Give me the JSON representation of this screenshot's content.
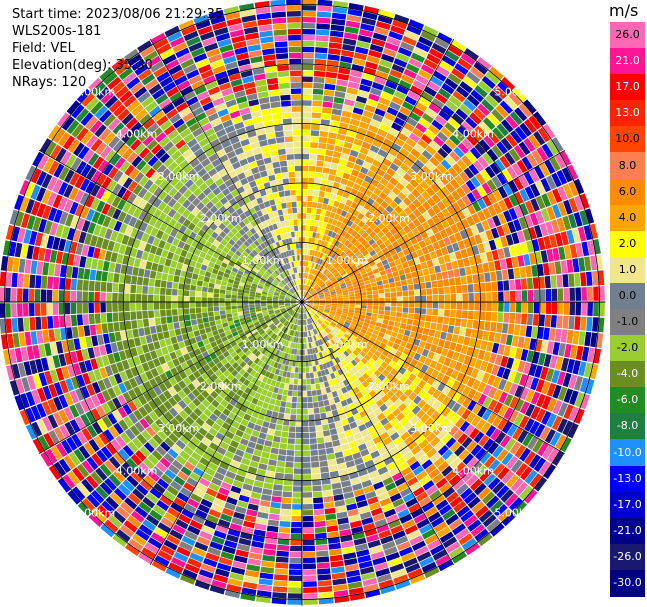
{
  "header": {
    "start_time": "Start time: 2023/08/06 21:29:35",
    "instrument": "WLS200s-181",
    "field": "Field: VEL",
    "elevation": "Elevation(deg): 35.30",
    "nrays": "NRays: 120"
  },
  "colorbar": {
    "unit": "m/s",
    "labels": [
      "26.0",
      "21.0",
      "17.0",
      "13.0",
      "10.0",
      "8.0",
      "6.0",
      "4.0",
      "2.0",
      "1.0",
      "0.0",
      "-1.0",
      "-2.0",
      "-4.0",
      "-6.0",
      "-8.0",
      "-10.0",
      "-13.0",
      "-17.0",
      "-21.0",
      "-26.0",
      "-30.0"
    ],
    "colors": [
      "#ff69b4",
      "#ff1493",
      "#ff0000",
      "#ff2400",
      "#ff4500",
      "#ff7f50",
      "#ff8c00",
      "#ffa500",
      "#ffff00",
      "#f0e68c",
      "#708090",
      "#808080",
      "#9acd32",
      "#6b8e23",
      "#228b22",
      "#1e7f3f",
      "#1e90ff",
      "#0000ff",
      "#0000cd",
      "#00008b",
      "#191970",
      "#000080"
    ]
  },
  "chart_data": {
    "type": "heatmap",
    "projection": "polar-ppi",
    "field": "VEL",
    "units": "m/s",
    "nrays": 120,
    "range_rings_km": [
      1.0,
      2.0,
      3.0,
      4.0,
      5.0
    ],
    "range_ring_labels": [
      "1.00km",
      "2.00km",
      "3.00km",
      "4.00km",
      "5.00km"
    ],
    "max_range_km": 5.1,
    "color_scale_min": -30.0,
    "color_scale_max": 26.0,
    "sectors": [
      {
        "azimuth_from_deg": 0,
        "azimuth_to_deg": 180,
        "range_to_km": 3.0,
        "dominant_velocity_ms": 3.0
      },
      {
        "azimuth_from_deg": 180,
        "azimuth_to_deg": 360,
        "range_to_km": 3.0,
        "dominant_velocity_ms": -3.0
      },
      {
        "azimuth_from_deg": 0,
        "azimuth_to_deg": 360,
        "range_from_km": 3.5,
        "pattern": "noise"
      }
    ],
    "grid": true
  }
}
